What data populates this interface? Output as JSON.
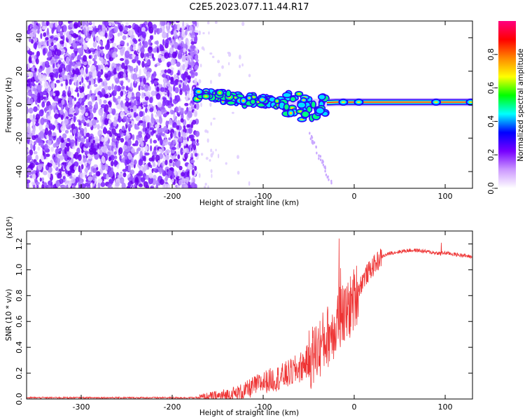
{
  "title": "C2E5.2023.077.11.44.R17",
  "chart_data": [
    {
      "type": "heatmap",
      "xlabel": "Height of straight line (km)",
      "ylabel": "Frequency (Hz)",
      "xlim": [
        -360,
        130
      ],
      "ylim": [
        -50,
        50
      ],
      "xticks": [
        -300,
        -200,
        -100,
        0,
        100
      ],
      "xtick_labels": [
        "-300",
        "-200",
        "-100",
        "0",
        "100"
      ],
      "yticks": [
        -40,
        -20,
        0,
        20,
        40
      ],
      "ytick_labels": [
        "-40",
        "-20",
        "0",
        "20",
        "40"
      ],
      "colorbar": {
        "label": "Normalized spectral amplitude",
        "range": [
          0,
          1
        ],
        "ticks": [
          0,
          0.2,
          0.4,
          0.6,
          0.8
        ],
        "tick_labels": [
          "0.0",
          "0.2",
          "0.4",
          "0.6",
          "0.8"
        ],
        "colors": [
          "#ffffff",
          "#cc99ff",
          "#7700ff",
          "#0000ff",
          "#00ffff",
          "#00ff00",
          "#ffff00",
          "#ff8800",
          "#ff0000",
          "#ff0080"
        ]
      },
      "ridge": [
        {
          "x": -175,
          "y": 6
        },
        {
          "x": -150,
          "y": 5
        },
        {
          "x": -125,
          "y": 3
        },
        {
          "x": -100,
          "y": 2
        },
        {
          "x": -80,
          "y": 1
        },
        {
          "x": -60,
          "y": 1
        },
        {
          "x": -40,
          "y": 1
        },
        {
          "x": -20,
          "y": 1.5
        },
        {
          "x": 0,
          "y": 1.5
        },
        {
          "x": 50,
          "y": 1.5
        },
        {
          "x": 100,
          "y": 1.5
        },
        {
          "x": 130,
          "y": 1.5
        }
      ],
      "noise_region_x": [
        -360,
        -172
      ]
    },
    {
      "type": "line",
      "xlabel": "Height of straight line (km)",
      "ylabel": "SNR (10 * v/v)",
      "y_multiplier": "(x10⁴)",
      "xlim": [
        -360,
        130
      ],
      "ylim": [
        0,
        1.3
      ],
      "xticks": [
        -300,
        -200,
        -100,
        0,
        100
      ],
      "xtick_labels": [
        "-300",
        "-200",
        "-100",
        "0",
        "100"
      ],
      "yticks": [
        0,
        0.2,
        0.4,
        0.6,
        0.8,
        1.0,
        1.2
      ],
      "ytick_labels": [
        "0.0",
        "0.2",
        "0.4",
        "0.6",
        "0.8",
        "1.0",
        "1.2"
      ],
      "color": "#ee3333",
      "series": [
        {
          "x": [
            -360,
            -300,
            -250,
            -200,
            -170,
            -150,
            -130,
            -120,
            -110,
            -100,
            -90,
            -80,
            -70,
            -60,
            -50,
            -45,
            -40,
            -35,
            -30,
            -25,
            -20,
            -15,
            -10,
            -5,
            0,
            5,
            10,
            20,
            30,
            40,
            50,
            60,
            70,
            80,
            90,
            100,
            110,
            120,
            130
          ],
          "values": [
            0.01,
            0.01,
            0.01,
            0.01,
            0.01,
            0.02,
            0.04,
            0.06,
            0.1,
            0.13,
            0.15,
            0.17,
            0.2,
            0.24,
            0.3,
            0.34,
            0.38,
            0.43,
            0.48,
            0.52,
            0.58,
            0.63,
            0.65,
            0.7,
            0.78,
            0.85,
            0.93,
            1.02,
            1.1,
            1.13,
            1.14,
            1.15,
            1.15,
            1.14,
            1.13,
            1.13,
            1.12,
            1.11,
            1.1
          ]
        }
      ]
    }
  ]
}
